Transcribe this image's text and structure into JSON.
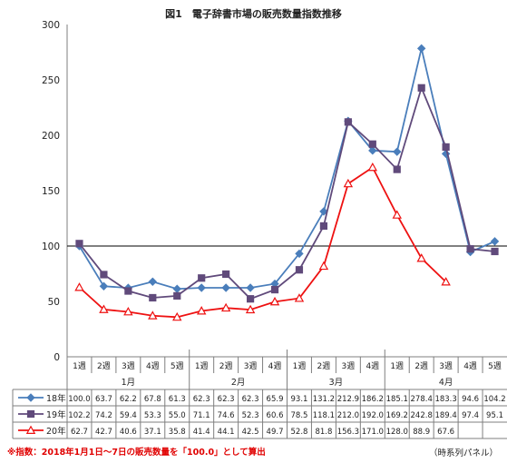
{
  "title": "図1　電子辞書市場の販売数量指数推移",
  "footnote": "※指数：2018年1月1日～7日の販売数量を「100.0」として算出",
  "source": "（時系列パネル）",
  "chart_data": {
    "type": "line",
    "y_ticks": [
      "0",
      "50",
      "100",
      "150",
      "200",
      "250",
      "300"
    ],
    "ylim": [
      0,
      300
    ],
    "reference_line": 100,
    "categories": [
      "1週",
      "2週",
      "3週",
      "4週",
      "5週",
      "1週",
      "2週",
      "3週",
      "4週",
      "1週",
      "2週",
      "3週",
      "4週",
      "1週",
      "2週",
      "3週",
      "4週",
      "5週"
    ],
    "month_labels": [
      {
        "label": "1月",
        "start": 0,
        "end": 4
      },
      {
        "label": "2月",
        "start": 5,
        "end": 8
      },
      {
        "label": "3月",
        "start": 9,
        "end": 12
      },
      {
        "label": "4月",
        "start": 13,
        "end": 17
      }
    ],
    "series": [
      {
        "name": "18年",
        "color": "#4a7ebb",
        "marker": "diamond",
        "values": [
          100.0,
          63.7,
          62.2,
          67.8,
          61.3,
          62.3,
          62.3,
          62.3,
          65.9,
          93.1,
          131.2,
          212.9,
          186.2,
          185.1,
          278.4,
          183.3,
          94.6,
          104.2
        ],
        "labels": [
          "100.0",
          "63.7",
          "62.2",
          "67.8",
          "61.3",
          "62.3",
          "62.3",
          "62.3",
          "65.9",
          "93.1",
          "131.2",
          "212.9",
          "186.2",
          "185.1",
          "278.4",
          "183.3",
          "94.6",
          "104.2"
        ]
      },
      {
        "name": "19年",
        "color": "#604a7b",
        "marker": "square",
        "values": [
          102.2,
          74.2,
          59.4,
          53.3,
          55.0,
          71.1,
          74.6,
          52.3,
          60.6,
          78.5,
          118.1,
          212.0,
          192.0,
          169.2,
          242.8,
          189.4,
          97.4,
          95.1
        ],
        "labels": [
          "102.2",
          "74.2",
          "59.4",
          "53.3",
          "55.0",
          "71.1",
          "74.6",
          "52.3",
          "60.6",
          "78.5",
          "118.1",
          "212.0",
          "192.0",
          "169.2",
          "242.8",
          "189.4",
          "97.4",
          "95.1"
        ]
      },
      {
        "name": "20年",
        "color": "#ee1111",
        "marker": "triangle",
        "values": [
          62.7,
          42.7,
          40.6,
          37.1,
          35.8,
          41.4,
          44.1,
          42.5,
          49.7,
          52.8,
          81.8,
          156.3,
          171.0,
          128.0,
          88.9,
          67.6,
          null,
          null
        ],
        "labels": [
          "62.7",
          "42.7",
          "40.6",
          "37.1",
          "35.8",
          "41.4",
          "44.1",
          "42.5",
          "49.7",
          "52.8",
          "81.8",
          "156.3",
          "171.0",
          "128.0",
          "88.9",
          "67.6",
          "",
          ""
        ]
      }
    ]
  }
}
